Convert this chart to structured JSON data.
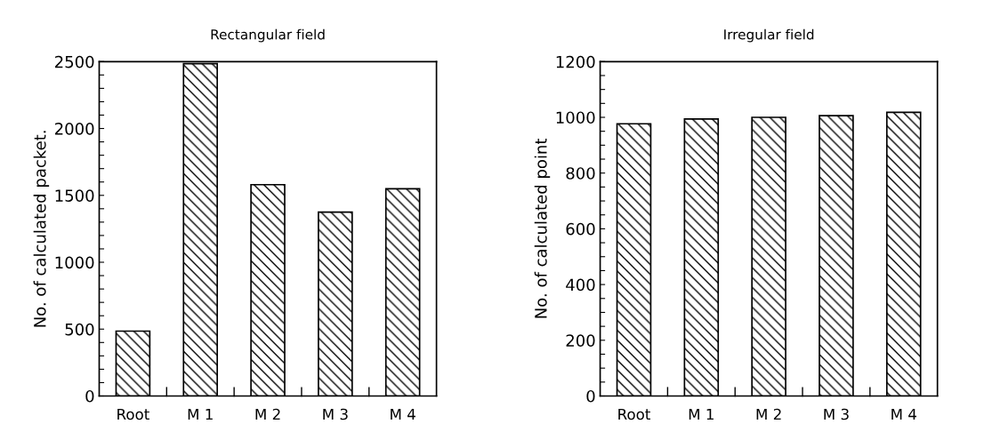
{
  "chart_data": [
    {
      "type": "bar",
      "title": "Rectangular field",
      "ylabel": "No. of calculated packet.",
      "categories": [
        "Root",
        "M 1",
        "M 2",
        "M 3",
        "M 4"
      ],
      "series": [
        {
          "color": "#000000",
          "values": [
            485,
            2485,
            1580,
            1375,
            1549
          ]
        }
      ],
      "ylim": [
        0,
        2500
      ],
      "yticks": [
        0,
        {
          "value": 100,
          "label": null
        },
        {
          "value": 200,
          "label": null
        },
        {
          "value": 300,
          "label": null
        },
        {
          "value": 400,
          "label": null
        },
        500,
        {
          "value": 600,
          "label": null
        },
        {
          "value": 700,
          "label": null
        },
        {
          "value": 800,
          "label": null
        },
        {
          "value": 900,
          "label": null
        },
        1000,
        {
          "value": 1100,
          "label": null
        },
        {
          "value": 1200,
          "label": null
        },
        {
          "value": 1300,
          "label": null
        },
        {
          "value": 1400,
          "label": null
        },
        1500,
        {
          "value": 1600,
          "label": null
        },
        {
          "value": 1700,
          "label": null
        },
        {
          "value": 1800,
          "label": null
        },
        {
          "value": 1900,
          "label": null
        },
        2000,
        {
          "value": 2100,
          "label": null
        },
        {
          "value": 2200,
          "label": null
        },
        {
          "value": 2300,
          "label": null
        },
        {
          "value": 2400,
          "label": null
        },
        2500
      ],
      "grid": false
    },
    {
      "type": "bar",
      "title": "Irregular field",
      "ylabel": "No. of calculated point",
      "categories": [
        "Root",
        "M 1",
        "M 2",
        "M 3",
        "M 4"
      ],
      "series": [
        {
          "color": "#000000",
          "values": [
            977,
            994,
            1000,
            1006,
            1018
          ]
        }
      ],
      "ylim": [
        0,
        1200
      ],
      "yticks": [
        0,
        {
          "value": 50,
          "label": null
        },
        {
          "value": 100,
          "label": null
        },
        {
          "value": 150,
          "label": null
        },
        200,
        {
          "value": 250,
          "label": null
        },
        {
          "value": 300,
          "label": null
        },
        {
          "value": 350,
          "label": null
        },
        400,
        {
          "value": 450,
          "label": null
        },
        {
          "value": 500,
          "label": null
        },
        {
          "value": 550,
          "label": null
        },
        600,
        {
          "value": 650,
          "label": null
        },
        {
          "value": 700,
          "label": null
        },
        {
          "value": 750,
          "label": null
        },
        800,
        {
          "value": 850,
          "label": null
        },
        {
          "value": 900,
          "label": null
        },
        {
          "value": 950,
          "label": null
        },
        1000,
        {
          "value": 1050,
          "label": null
        },
        {
          "value": 1100,
          "label": null
        },
        {
          "value": 1150,
          "label": null
        },
        1200
      ],
      "grid": false
    }
  ]
}
